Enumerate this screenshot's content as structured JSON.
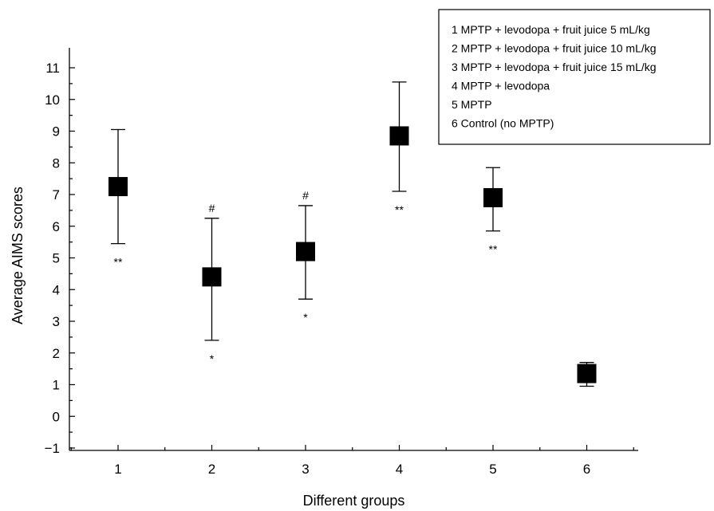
{
  "chart_data": {
    "type": "scatter",
    "xlabel": "Different groups",
    "ylabel": "Average AIMS scores",
    "ylim": [
      -1,
      11
    ],
    "xlim": [
      0.6,
      6.6
    ],
    "x_ticks": [
      "1",
      "2",
      "3",
      "4",
      "5",
      "6"
    ],
    "y_ticks": [
      "−1",
      "0",
      "1",
      "2",
      "3",
      "4",
      "5",
      "6",
      "7",
      "8",
      "9",
      "10",
      "11"
    ],
    "points": [
      {
        "x": 1,
        "y": 7.25,
        "lower": 5.45,
        "upper": 9.05,
        "above": "",
        "below": "**"
      },
      {
        "x": 2,
        "y": 4.4,
        "lower": 2.4,
        "upper": 6.25,
        "above": "#",
        "below": "*"
      },
      {
        "x": 3,
        "y": 5.2,
        "lower": 3.7,
        "upper": 6.65,
        "above": "#",
        "below": "*"
      },
      {
        "x": 4,
        "y": 8.85,
        "lower": 7.1,
        "upper": 10.55,
        "above": "",
        "below": "**"
      },
      {
        "x": 5,
        "y": 6.9,
        "lower": 5.85,
        "upper": 7.85,
        "above": "",
        "below": "**"
      },
      {
        "x": 6,
        "y": 1.35,
        "lower": 0.95,
        "upper": 1.7,
        "above": "",
        "below": ""
      }
    ],
    "legend": [
      "1 MPTP + levodopa + fruit juice 5 mL/kg",
      "2 MPTP + levodopa + fruit juice 10 mL/kg",
      "3 MPTP + levodopa + fruit juice 15 mL/kg",
      "4 MPTP + levodopa",
      "5 MPTP",
      "6 Control (no MPTP)"
    ],
    "legend_position": "top-right",
    "grid": false,
    "marker": "square",
    "color": "#000000"
  }
}
